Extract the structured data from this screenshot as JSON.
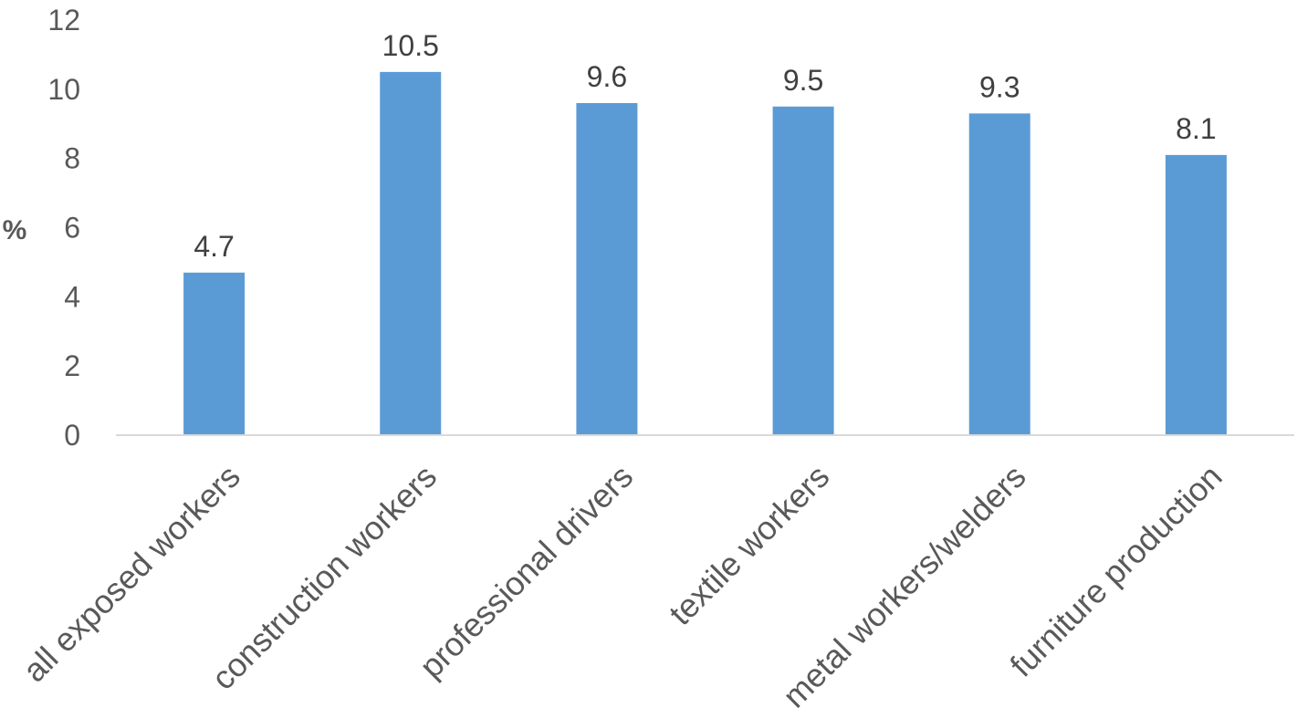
{
  "chart_data": {
    "type": "bar",
    "categories": [
      "all exposed workers",
      "construction workers",
      "professional drivers",
      "textile workers",
      "metal workers/welders",
      "furniture production"
    ],
    "series": [
      {
        "values": [
          4.7,
          10.5,
          9.6,
          9.5,
          9.3,
          8.1
        ]
      }
    ],
    "data_labels": [
      "4.7",
      "10.5",
      "9.6",
      "9.5",
      "9.3",
      "8.1"
    ],
    "ylabel": "%",
    "ylim": [
      0,
      12
    ],
    "yticks": [
      0,
      2,
      4,
      6,
      8,
      10,
      12
    ],
    "grid": false,
    "legend": "none",
    "colors": {
      "bar": "#5b9bd5",
      "axis": "#d9d9d9",
      "tick_text": "#595959",
      "label_text": "#404040"
    }
  }
}
